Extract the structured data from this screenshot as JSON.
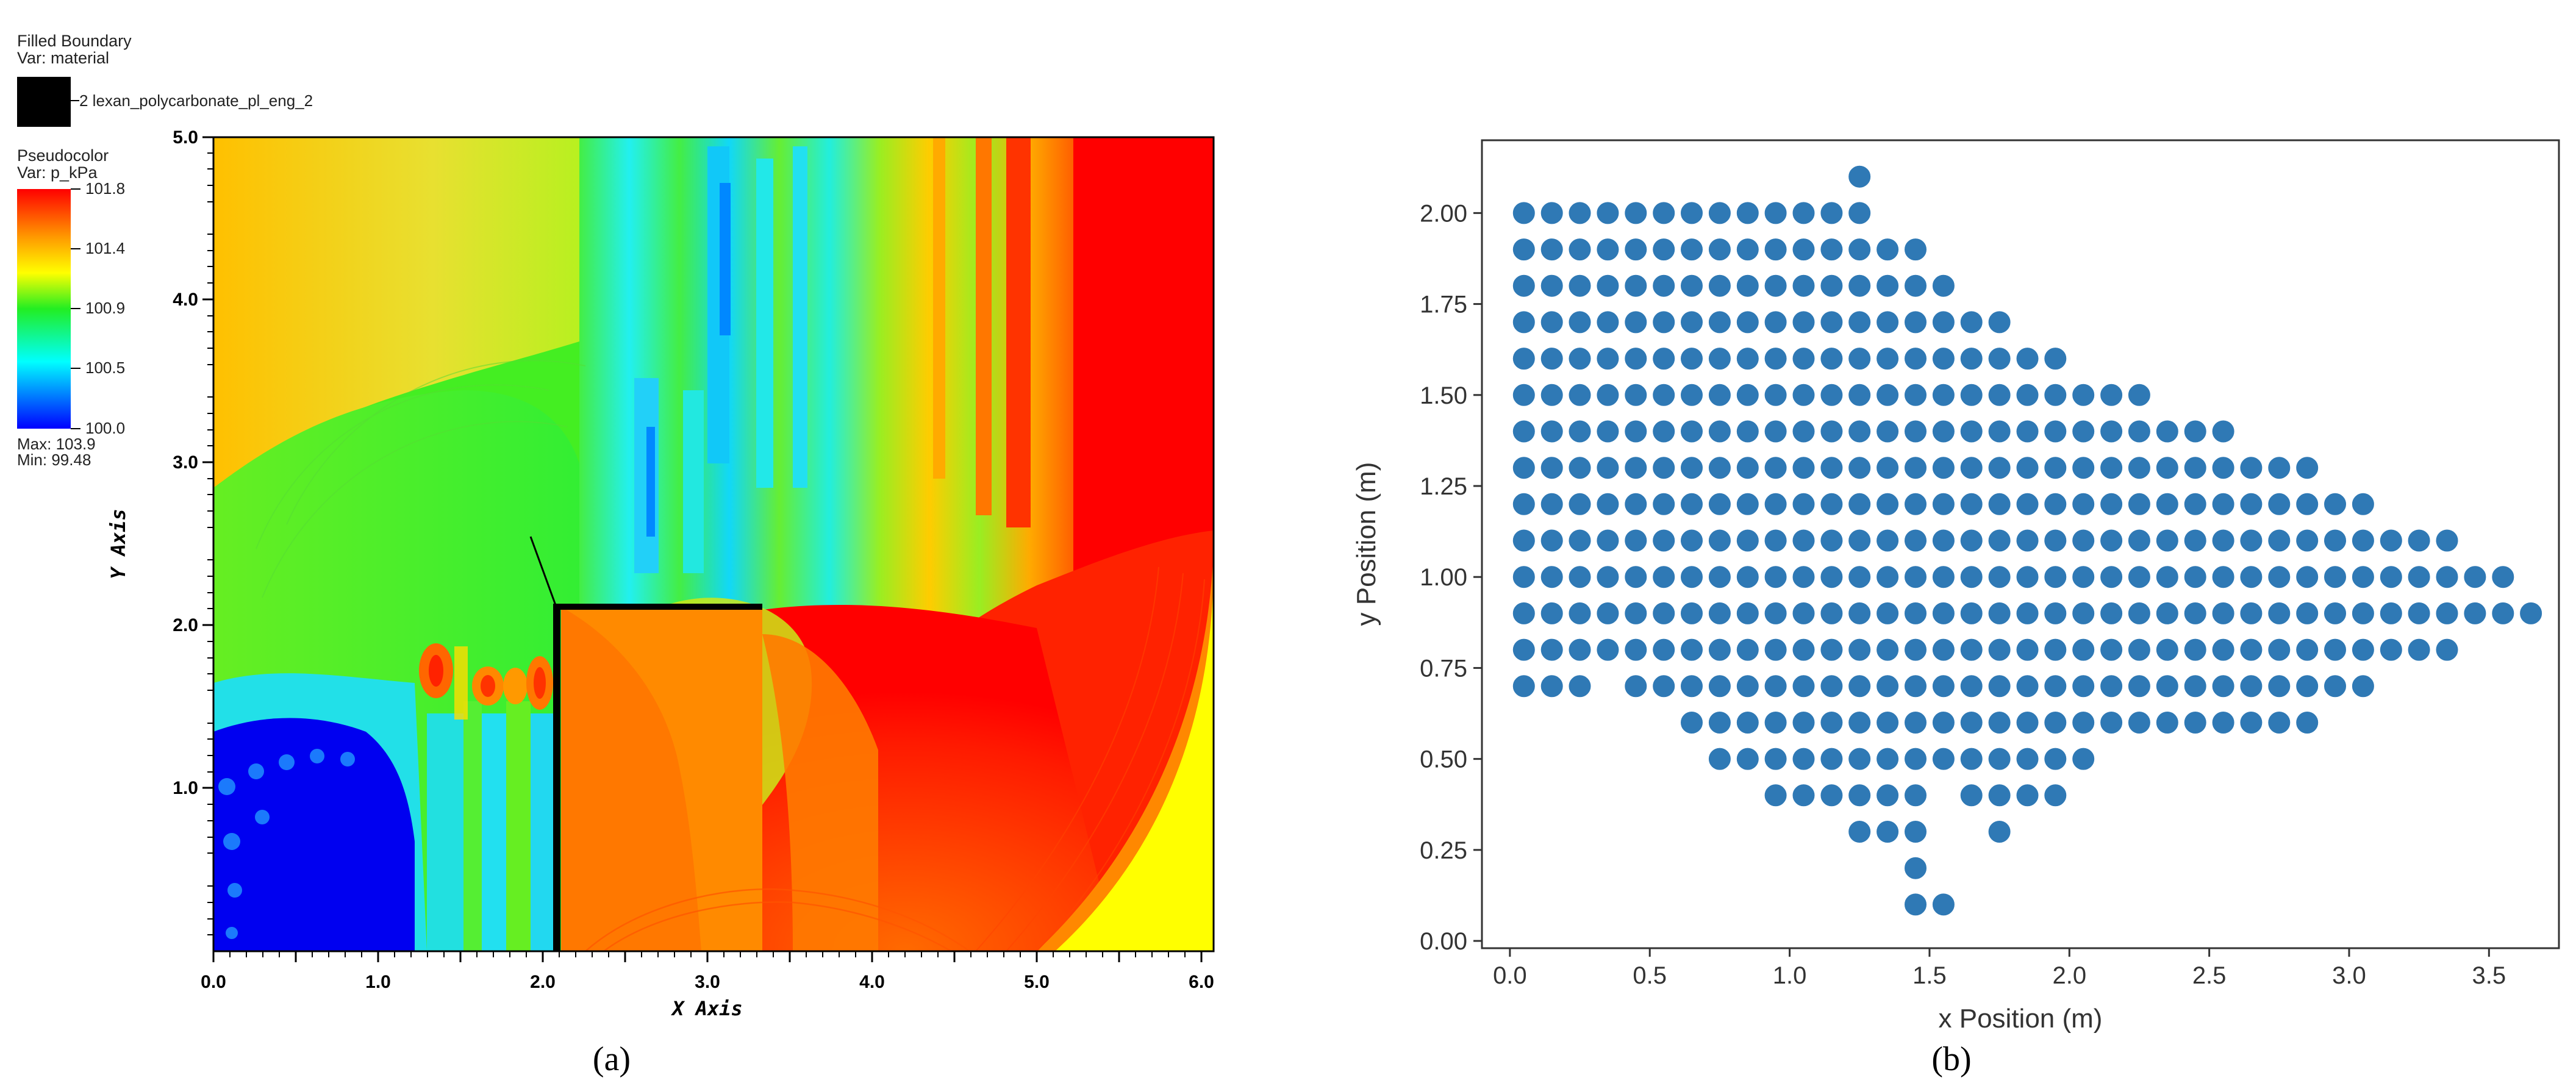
{
  "panel_a": {
    "caption": "(a)",
    "legend_top": {
      "title": "Filled Boundary",
      "var": "Var: material",
      "entry": "2 lexan_polycarbonate_pl_eng_2"
    },
    "legend_color": {
      "title": "Pseudocolor",
      "var": "Var: p_kPa",
      "ticks": [
        "101.8",
        "101.4",
        "100.9",
        "100.5",
        "100.0"
      ],
      "max_text": "Max:  103.9",
      "min_text": "Min:  99.48"
    },
    "xlabel": "X Axis",
    "ylabel": "Y Axis",
    "x_ticks": [
      "0.0",
      "1.0",
      "2.0",
      "3.0",
      "4.0",
      "5.0",
      "6.0"
    ],
    "y_ticks": [
      "1.0",
      "2.0",
      "3.0",
      "4.0",
      "5.0"
    ],
    "colors": {
      "blue": "#0000ff",
      "cyan": "#22e0f0",
      "green": "#44ee22",
      "yellow": "#ffff00",
      "orange": "#ff8800",
      "red": "#ff0000"
    }
  },
  "panel_b": {
    "caption": "(b)",
    "chart_data": {
      "type": "scatter",
      "xlabel": "x Position (m)",
      "ylabel": "y Position (m)",
      "xlim": [
        -0.1,
        3.75
      ],
      "ylim": [
        -0.02,
        2.2
      ],
      "x_ticks": [
        "0.0",
        "0.5",
        "1.0",
        "1.5",
        "2.0",
        "2.5",
        "3.0",
        "3.5"
      ],
      "y_ticks": [
        "0.00",
        "0.25",
        "0.50",
        "0.75",
        "1.00",
        "1.25",
        "1.50",
        "1.75",
        "2.00"
      ],
      "color": "#2f79b5",
      "rows": [
        {
          "y": 2.1,
          "x": [
            1.25
          ]
        },
        {
          "y": 2.0,
          "x": [
            0.05,
            0.15,
            0.25,
            0.35,
            0.45,
            0.55,
            0.65,
            0.75,
            0.85,
            0.95,
            1.05,
            1.15,
            1.25
          ]
        },
        {
          "y": 1.9,
          "x": [
            0.05,
            0.15,
            0.25,
            0.35,
            0.45,
            0.55,
            0.65,
            0.75,
            0.85,
            0.95,
            1.05,
            1.15,
            1.25,
            1.35,
            1.45
          ]
        },
        {
          "y": 1.8,
          "x": [
            0.05,
            0.15,
            0.25,
            0.35,
            0.45,
            0.55,
            0.65,
            0.75,
            0.85,
            0.95,
            1.05,
            1.15,
            1.25,
            1.35,
            1.45,
            1.55
          ]
        },
        {
          "y": 1.7,
          "x": [
            0.05,
            0.15,
            0.25,
            0.35,
            0.45,
            0.55,
            0.65,
            0.75,
            0.85,
            0.95,
            1.05,
            1.15,
            1.25,
            1.35,
            1.45,
            1.55,
            1.65,
            1.75
          ]
        },
        {
          "y": 1.6,
          "x": [
            0.05,
            0.15,
            0.25,
            0.35,
            0.45,
            0.55,
            0.65,
            0.75,
            0.85,
            0.95,
            1.05,
            1.15,
            1.25,
            1.35,
            1.45,
            1.55,
            1.65,
            1.75,
            1.85,
            1.95
          ]
        },
        {
          "y": 1.5,
          "x": [
            0.05,
            0.15,
            0.25,
            0.35,
            0.45,
            0.55,
            0.65,
            0.75,
            0.85,
            0.95,
            1.05,
            1.15,
            1.25,
            1.35,
            1.45,
            1.55,
            1.65,
            1.75,
            1.85,
            1.95,
            2.05,
            2.15,
            2.25
          ]
        },
        {
          "y": 1.4,
          "x": [
            0.05,
            0.15,
            0.25,
            0.35,
            0.45,
            0.55,
            0.65,
            0.75,
            0.85,
            0.95,
            1.05,
            1.15,
            1.25,
            1.35,
            1.45,
            1.55,
            1.65,
            1.75,
            1.85,
            1.95,
            2.05,
            2.15,
            2.25,
            2.35,
            2.45,
            2.55
          ]
        },
        {
          "y": 1.3,
          "x": [
            0.05,
            0.15,
            0.25,
            0.35,
            0.45,
            0.55,
            0.65,
            0.75,
            0.85,
            0.95,
            1.05,
            1.15,
            1.25,
            1.35,
            1.45,
            1.55,
            1.65,
            1.75,
            1.85,
            1.95,
            2.05,
            2.15,
            2.25,
            2.35,
            2.45,
            2.55,
            2.65,
            2.75,
            2.85
          ]
        },
        {
          "y": 1.2,
          "x": [
            0.05,
            0.15,
            0.25,
            0.35,
            0.45,
            0.55,
            0.65,
            0.75,
            0.85,
            0.95,
            1.05,
            1.15,
            1.25,
            1.35,
            1.45,
            1.55,
            1.65,
            1.75,
            1.85,
            1.95,
            2.05,
            2.15,
            2.25,
            2.35,
            2.45,
            2.55,
            2.65,
            2.75,
            2.85,
            2.95,
            3.05
          ]
        },
        {
          "y": 1.1,
          "x": [
            0.05,
            0.15,
            0.25,
            0.35,
            0.45,
            0.55,
            0.65,
            0.75,
            0.85,
            0.95,
            1.05,
            1.15,
            1.25,
            1.35,
            1.45,
            1.55,
            1.65,
            1.75,
            1.85,
            1.95,
            2.05,
            2.15,
            2.25,
            2.35,
            2.45,
            2.55,
            2.65,
            2.75,
            2.85,
            2.95,
            3.05,
            3.15,
            3.25,
            3.35
          ]
        },
        {
          "y": 1.0,
          "x": [
            0.05,
            0.15,
            0.25,
            0.35,
            0.45,
            0.55,
            0.65,
            0.75,
            0.85,
            0.95,
            1.05,
            1.15,
            1.25,
            1.35,
            1.45,
            1.55,
            1.65,
            1.75,
            1.85,
            1.95,
            2.05,
            2.15,
            2.25,
            2.35,
            2.45,
            2.55,
            2.65,
            2.75,
            2.85,
            2.95,
            3.05,
            3.15,
            3.25,
            3.35,
            3.45,
            3.55
          ]
        },
        {
          "y": 0.9,
          "x": [
            0.05,
            0.15,
            0.25,
            0.35,
            0.45,
            0.55,
            0.65,
            0.75,
            0.85,
            0.95,
            1.05,
            1.15,
            1.25,
            1.35,
            1.45,
            1.55,
            1.65,
            1.75,
            1.85,
            1.95,
            2.05,
            2.15,
            2.25,
            2.35,
            2.45,
            2.55,
            2.65,
            2.75,
            2.85,
            2.95,
            3.05,
            3.15,
            3.25,
            3.35,
            3.45,
            3.55,
            3.65
          ]
        },
        {
          "y": 0.8,
          "x": [
            0.05,
            0.15,
            0.25,
            0.35,
            0.45,
            0.55,
            0.65,
            0.75,
            0.85,
            0.95,
            1.05,
            1.15,
            1.25,
            1.35,
            1.45,
            1.55,
            1.65,
            1.75,
            1.85,
            1.95,
            2.05,
            2.15,
            2.25,
            2.35,
            2.45,
            2.55,
            2.65,
            2.75,
            2.85,
            2.95,
            3.05,
            3.15,
            3.25,
            3.35
          ]
        },
        {
          "y": 0.7,
          "x": [
            0.05,
            0.15,
            0.25,
            0.45,
            0.55,
            0.65,
            0.75,
            0.85,
            0.95,
            1.05,
            1.15,
            1.25,
            1.35,
            1.45,
            1.55,
            1.65,
            1.75,
            1.85,
            1.95,
            2.05,
            2.15,
            2.25,
            2.35,
            2.45,
            2.55,
            2.65,
            2.75,
            2.85,
            2.95,
            3.05
          ]
        },
        {
          "y": 0.6,
          "x": [
            0.65,
            0.75,
            0.85,
            0.95,
            1.05,
            1.15,
            1.25,
            1.35,
            1.45,
            1.55,
            1.65,
            1.75,
            1.85,
            1.95,
            2.05,
            2.15,
            2.25,
            2.35,
            2.45,
            2.55,
            2.65,
            2.75,
            2.85
          ]
        },
        {
          "y": 0.5,
          "x": [
            0.75,
            0.85,
            0.95,
            1.05,
            1.15,
            1.25,
            1.35,
            1.45,
            1.55,
            1.65,
            1.75,
            1.85,
            1.95,
            2.05
          ]
        },
        {
          "y": 0.4,
          "x": [
            0.95,
            1.05,
            1.15,
            1.25,
            1.35,
            1.45,
            1.65,
            1.75,
            1.85,
            1.95
          ]
        },
        {
          "y": 0.3,
          "x": [
            1.25,
            1.35,
            1.45,
            1.75
          ]
        },
        {
          "y": 0.2,
          "x": [
            1.45
          ]
        },
        {
          "y": 0.1,
          "x": [
            1.45,
            1.55
          ]
        }
      ]
    }
  }
}
